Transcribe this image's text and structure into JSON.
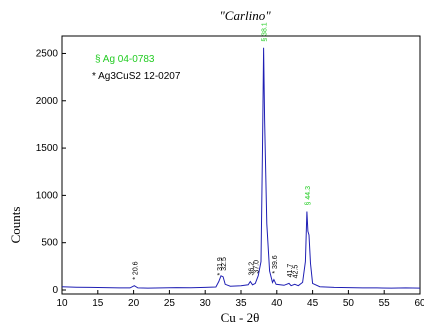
{
  "chart_data": {
    "type": "line",
    "title": "\"Carlino\"",
    "xlabel": "Cu - 2θ",
    "ylabel": "Counts",
    "xlim": [
      10,
      60
    ],
    "ylim": [
      0,
      2600
    ],
    "x_ticks": [
      10,
      15,
      20,
      25,
      30,
      35,
      40,
      45,
      50,
      55,
      60
    ],
    "y_ticks": [
      0,
      500,
      1000,
      1500,
      2000,
      2500
    ],
    "grid": false,
    "line_color": "#1f1fb4",
    "legend": [
      {
        "label": "§ Ag 04-0783",
        "color": "#22cc22"
      },
      {
        "label": "* Ag3CuS2 12-0207",
        "color": "#000000"
      }
    ],
    "series": [
      {
        "points": [
          [
            10,
            35
          ],
          [
            12,
            30
          ],
          [
            14,
            28
          ],
          [
            16,
            25
          ],
          [
            18,
            22
          ],
          [
            19.5,
            22
          ],
          [
            20.1,
            45
          ],
          [
            20.6,
            22
          ],
          [
            22,
            20
          ],
          [
            24,
            22
          ],
          [
            26,
            25
          ],
          [
            28,
            24
          ],
          [
            30,
            28
          ],
          [
            31.5,
            32
          ],
          [
            31.9,
            90
          ],
          [
            32.2,
            150
          ],
          [
            32.5,
            140
          ],
          [
            32.8,
            60
          ],
          [
            33.5,
            40
          ],
          [
            35,
            45
          ],
          [
            36,
            55
          ],
          [
            36.3,
            90
          ],
          [
            36.6,
            55
          ],
          [
            37,
            70
          ],
          [
            37.4,
            150
          ],
          [
            37.8,
            300
          ],
          [
            38.0,
            1500
          ],
          [
            38.15,
            2560
          ],
          [
            38.3,
            1800
          ],
          [
            38.6,
            700
          ],
          [
            39.0,
            200
          ],
          [
            39.4,
            80
          ],
          [
            39.6,
            110
          ],
          [
            39.9,
            60
          ],
          [
            41.0,
            50
          ],
          [
            41.7,
            70
          ],
          [
            42.0,
            45
          ],
          [
            42.5,
            60
          ],
          [
            43.0,
            45
          ],
          [
            43.6,
            80
          ],
          [
            44.0,
            300
          ],
          [
            44.2,
            830
          ],
          [
            44.35,
            620
          ],
          [
            44.5,
            580
          ],
          [
            44.7,
            280
          ],
          [
            45.0,
            70
          ],
          [
            46,
            35
          ],
          [
            48,
            28
          ],
          [
            50,
            25
          ],
          [
            52,
            22
          ],
          [
            54,
            22
          ],
          [
            56,
            20
          ],
          [
            58,
            22
          ],
          [
            60,
            20
          ]
        ]
      }
    ],
    "annotations": [
      {
        "text": "§ 38.1",
        "x": 38.15,
        "y": 2560,
        "color": "#22cc22"
      },
      {
        "text": "§ 44.3",
        "x": 44.2,
        "y": 830,
        "color": "#22cc22"
      },
      {
        "text": "* 20.6",
        "x": 20.1,
        "y": 45,
        "color": "#000000"
      },
      {
        "text": "* 31.9",
        "x": 31.9,
        "y": 90,
        "color": "#000000"
      },
      {
        "text": "32.5",
        "x": 32.5,
        "y": 140,
        "color": "#000000"
      },
      {
        "text": "36.2",
        "x": 36.3,
        "y": 90,
        "color": "#000000"
      },
      {
        "text": "37.0",
        "x": 37.0,
        "y": 110,
        "color": "#000000"
      },
      {
        "text": "* 39.6",
        "x": 39.6,
        "y": 110,
        "color": "#000000"
      },
      {
        "text": "41.7",
        "x": 41.7,
        "y": 70,
        "color": "#000000"
      },
      {
        "text": "42.5",
        "x": 42.5,
        "y": 60,
        "color": "#000000"
      }
    ]
  }
}
